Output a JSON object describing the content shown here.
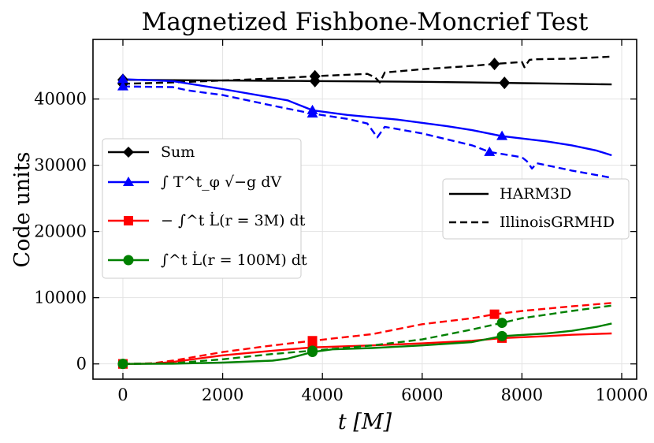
{
  "chart_data": {
    "type": "line",
    "title": "Magnetized Fishbone-Moncrief Test",
    "xlabel": "t [M]",
    "ylabel": "Code units",
    "xlim": [
      -600,
      10300
    ],
    "ylim": [
      -2300,
      49000
    ],
    "xticks": [
      0,
      2000,
      4000,
      6000,
      8000,
      10000
    ],
    "yticks": [
      0,
      10000,
      20000,
      30000,
      40000
    ],
    "xtick_labels": [
      "0",
      "2000",
      "4000",
      "6000",
      "8000",
      "10000"
    ],
    "ytick_labels": [
      "0",
      "10000",
      "20000",
      "30000",
      "40000"
    ],
    "grid": true,
    "legends": {
      "quantities": {
        "placement": "center-left",
        "entries": [
          {
            "label": "Sum",
            "color": "#000000",
            "marker": "diamond"
          },
          {
            "label": "∫ T^t_φ √−g dV",
            "color": "#0000ff",
            "marker": "triangle"
          },
          {
            "label": "− ∫^t L̇(r = 3M) dt",
            "color": "#ff0000",
            "marker": "square"
          },
          {
            "label": "∫^t L̇(r = 100M) dt",
            "color": "#008000",
            "marker": "circle"
          }
        ]
      },
      "codes": {
        "placement": "center-right",
        "entries": [
          {
            "label": "HARM3D",
            "style": "solid"
          },
          {
            "label": "IllinoisGRMHD",
            "style": "dashed"
          }
        ]
      }
    },
    "series": [
      {
        "name": "Sum (HARM3D)",
        "color": "#000000",
        "style": "solid",
        "marker": "diamond",
        "marker_x": [
          0,
          3850,
          7650
        ],
        "x": [
          0,
          1000,
          2000,
          3000,
          4000,
          5000,
          6000,
          7000,
          8000,
          9000,
          9800
        ],
        "y": [
          42900,
          42850,
          42800,
          42750,
          42700,
          42650,
          42600,
          42500,
          42400,
          42300,
          42200
        ]
      },
      {
        "name": "Sum (IllinoisGRMHD)",
        "color": "#000000",
        "style": "dashed",
        "marker": "diamond",
        "marker_x": [
          0,
          3850,
          7450
        ],
        "x": [
          0,
          1000,
          2000,
          3000,
          4000,
          4900,
          5050,
          5150,
          5250,
          6000,
          7000,
          7450,
          8000,
          8050,
          8150,
          8250,
          9000,
          9800
        ],
        "y": [
          42300,
          42500,
          42800,
          43100,
          43500,
          43800,
          43300,
          42500,
          44000,
          44500,
          45000,
          45300,
          45600,
          44800,
          45900,
          46000,
          46100,
          46400
        ]
      },
      {
        "name": "∫ T^t_φ √−g dV (HARM3D)",
        "color": "#0000ff",
        "style": "solid",
        "marker": "triangle",
        "marker_x": [
          0,
          3800,
          7600
        ],
        "x": [
          0,
          1000,
          2000,
          3000,
          3300,
          3800,
          4500,
          5500,
          6500,
          7000,
          7600,
          8500,
          9000,
          9500,
          9800
        ],
        "y": [
          43000,
          42700,
          41500,
          40200,
          39800,
          38300,
          37600,
          36900,
          35900,
          35300,
          34400,
          33600,
          33000,
          32200,
          31500
        ]
      },
      {
        "name": "∫ T^t_φ √−g dV (IllinoisGRMHD)",
        "color": "#0000ff",
        "style": "dashed",
        "marker": "triangle",
        "marker_x": [
          0,
          3800,
          7350
        ],
        "x": [
          0,
          1000,
          1300,
          2000,
          3000,
          3800,
          4500,
          4900,
          5100,
          5250,
          6000,
          7000,
          7350,
          8000,
          8100,
          8200,
          8300,
          9000,
          9800
        ],
        "y": [
          41900,
          41800,
          41300,
          40600,
          39000,
          37800,
          37000,
          36300,
          34200,
          35800,
          34800,
          33000,
          32000,
          31200,
          30600,
          29500,
          30300,
          29200,
          28100
        ]
      },
      {
        "name": "− ∫^t L̇(r = 3M) dt (HARM3D)",
        "color": "#ff0000",
        "style": "solid",
        "marker": "square",
        "marker_x": [
          0,
          3800,
          7600
        ],
        "x": [
          0,
          600,
          1000,
          2000,
          3000,
          3800,
          5000,
          6000,
          7000,
          7600,
          8500,
          9000,
          9800
        ],
        "y": [
          0,
          50,
          300,
          1300,
          2000,
          2500,
          2800,
          3100,
          3500,
          3900,
          4200,
          4400,
          4600
        ]
      },
      {
        "name": "− ∫^t L̇(r = 3M) dt (IllinoisGRMHD)",
        "color": "#ff0000",
        "style": "dashed",
        "marker": "square",
        "marker_x": [
          0,
          3800,
          7450
        ],
        "x": [
          0,
          600,
          1000,
          2000,
          3000,
          3800,
          5000,
          6000,
          7000,
          7450,
          8000,
          9000,
          9800
        ],
        "y": [
          0,
          100,
          500,
          1800,
          2800,
          3500,
          4500,
          6000,
          6900,
          7500,
          8000,
          8700,
          9200
        ]
      },
      {
        "name": "∫^t L̇(r = 100M) dt (HARM3D)",
        "color": "#008000",
        "style": "solid",
        "marker": "circle",
        "marker_x": [
          0,
          3800,
          7600
        ],
        "x": [
          0,
          1000,
          2000,
          3000,
          3300,
          3800,
          4200,
          5000,
          6000,
          7000,
          7600,
          8500,
          9000,
          9500,
          9800
        ],
        "y": [
          0,
          30,
          200,
          500,
          800,
          1800,
          2200,
          2400,
          2800,
          3300,
          4200,
          4600,
          5000,
          5600,
          6100
        ]
      },
      {
        "name": "∫^t L̇(r = 100M) dt (IllinoisGRMHD)",
        "color": "#008000",
        "style": "dashed",
        "marker": "circle",
        "marker_x": [
          0,
          3800,
          7600
        ],
        "x": [
          0,
          1000,
          2000,
          3000,
          3800,
          5000,
          6000,
          7000,
          7600,
          8000,
          9000,
          9800
        ],
        "y": [
          0,
          100,
          700,
          1500,
          2000,
          2800,
          3700,
          5200,
          6200,
          6900,
          8000,
          8800
        ]
      }
    ]
  }
}
